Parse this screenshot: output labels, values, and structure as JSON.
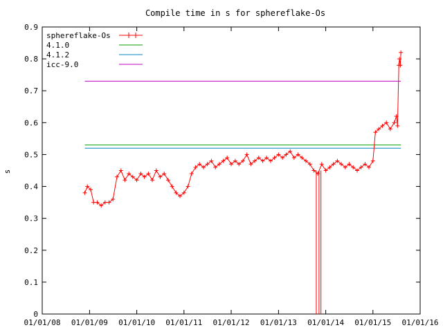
{
  "chart_data": {
    "type": "line",
    "title": "Compile time in s for sphereflake-Os",
    "xlabel": "",
    "ylabel": "s",
    "x_type": "date",
    "xlim": [
      "2008-01-01",
      "2016-01-01"
    ],
    "ylim": [
      0,
      0.9
    ],
    "x_ticks": [
      "01/01/08",
      "01/01/09",
      "01/01/10",
      "01/01/11",
      "01/01/12",
      "01/01/13",
      "01/01/14",
      "01/01/15",
      "01/01/16"
    ],
    "x_tick_dates": [
      "2008-01-01",
      "2009-01-01",
      "2010-01-01",
      "2011-01-01",
      "2012-01-01",
      "2013-01-01",
      "2014-01-01",
      "2015-01-01",
      "2016-01-01"
    ],
    "y_ticks": [
      "0",
      "0.1",
      "0.2",
      "0.3",
      "0.4",
      "0.5",
      "0.6",
      "0.7",
      "0.8",
      "0.9"
    ],
    "legend_position": "top-left",
    "grid": false,
    "series": [
      {
        "name": "sphereflake-Os",
        "color": "#ff0000",
        "marker": "plus",
        "points": [
          [
            "2008-11-25",
            0.38
          ],
          [
            "2008-12-15",
            0.4
          ],
          [
            "2009-01-10",
            0.39
          ],
          [
            "2009-02-01",
            0.35
          ],
          [
            "2009-03-01",
            0.35
          ],
          [
            "2009-04-01",
            0.34
          ],
          [
            "2009-05-01",
            0.35
          ],
          [
            "2009-06-01",
            0.35
          ],
          [
            "2009-07-01",
            0.36
          ],
          [
            "2009-08-01",
            0.43
          ],
          [
            "2009-09-01",
            0.45
          ],
          [
            "2009-10-01",
            0.42
          ],
          [
            "2009-11-01",
            0.44
          ],
          [
            "2009-12-01",
            0.43
          ],
          [
            "2010-01-01",
            0.42
          ],
          [
            "2010-02-01",
            0.44
          ],
          [
            "2010-03-01",
            0.43
          ],
          [
            "2010-04-01",
            0.44
          ],
          [
            "2010-05-01",
            0.42
          ],
          [
            "2010-06-01",
            0.45
          ],
          [
            "2010-07-01",
            0.43
          ],
          [
            "2010-08-01",
            0.44
          ],
          [
            "2010-09-01",
            0.42
          ],
          [
            "2010-10-01",
            0.4
          ],
          [
            "2010-11-01",
            0.38
          ],
          [
            "2010-12-01",
            0.37
          ],
          [
            "2011-01-01",
            0.38
          ],
          [
            "2011-02-01",
            0.4
          ],
          [
            "2011-03-01",
            0.44
          ],
          [
            "2011-04-01",
            0.46
          ],
          [
            "2011-05-01",
            0.47
          ],
          [
            "2011-06-01",
            0.46
          ],
          [
            "2011-07-01",
            0.47
          ],
          [
            "2011-08-01",
            0.48
          ],
          [
            "2011-09-01",
            0.46
          ],
          [
            "2011-10-01",
            0.47
          ],
          [
            "2011-11-01",
            0.48
          ],
          [
            "2011-12-01",
            0.49
          ],
          [
            "2012-01-01",
            0.47
          ],
          [
            "2012-02-01",
            0.48
          ],
          [
            "2012-03-01",
            0.47
          ],
          [
            "2012-04-01",
            0.48
          ],
          [
            "2012-05-01",
            0.5
          ],
          [
            "2012-06-01",
            0.47
          ],
          [
            "2012-07-01",
            0.48
          ],
          [
            "2012-08-01",
            0.49
          ],
          [
            "2012-09-01",
            0.48
          ],
          [
            "2012-10-01",
            0.49
          ],
          [
            "2012-11-01",
            0.48
          ],
          [
            "2012-12-01",
            0.49
          ],
          [
            "2013-01-01",
            0.5
          ],
          [
            "2013-02-01",
            0.49
          ],
          [
            "2013-03-01",
            0.5
          ],
          [
            "2013-04-01",
            0.51
          ],
          [
            "2013-05-01",
            0.49
          ],
          [
            "2013-06-01",
            0.5
          ],
          [
            "2013-07-01",
            0.49
          ],
          [
            "2013-08-01",
            0.48
          ],
          [
            "2013-09-01",
            0.47
          ],
          [
            "2013-10-01",
            0.45
          ],
          [
            "2013-11-01",
            0.44
          ],
          [
            "2013-12-01",
            0.47
          ],
          [
            "2014-01-01",
            0.45
          ],
          [
            "2014-02-01",
            0.46
          ],
          [
            "2014-03-01",
            0.47
          ],
          [
            "2014-04-01",
            0.48
          ],
          [
            "2014-05-01",
            0.47
          ],
          [
            "2014-06-01",
            0.46
          ],
          [
            "2014-07-01",
            0.47
          ],
          [
            "2014-08-01",
            0.46
          ],
          [
            "2014-09-01",
            0.45
          ],
          [
            "2014-10-01",
            0.46
          ],
          [
            "2014-11-01",
            0.47
          ],
          [
            "2014-12-01",
            0.46
          ],
          [
            "2015-01-01",
            0.48
          ],
          [
            "2015-01-20",
            0.57
          ],
          [
            "2015-02-15",
            0.58
          ],
          [
            "2015-03-15",
            0.59
          ],
          [
            "2015-04-15",
            0.6
          ],
          [
            "2015-05-15",
            0.58
          ],
          [
            "2015-06-15",
            0.6
          ],
          [
            "2015-07-01",
            0.62
          ],
          [
            "2015-07-10",
            0.59
          ],
          [
            "2015-07-20",
            0.78
          ],
          [
            "2015-07-25",
            0.8
          ],
          [
            "2015-08-01",
            0.78
          ],
          [
            "2015-08-05",
            0.82
          ]
        ],
        "dips": [
          {
            "date": "2013-10-20",
            "value": 0
          },
          {
            "date": "2013-11-10",
            "value": 0
          },
          {
            "date": "2013-11-25",
            "value": 0
          }
        ]
      },
      {
        "name": "4.1.0",
        "color": "#00a000",
        "value": 0.53
      },
      {
        "name": "4.1.2",
        "color": "#0080c0",
        "value": 0.52
      },
      {
        "name": "icc-9.0",
        "color": "#c000c0",
        "value": 0.73
      }
    ]
  }
}
